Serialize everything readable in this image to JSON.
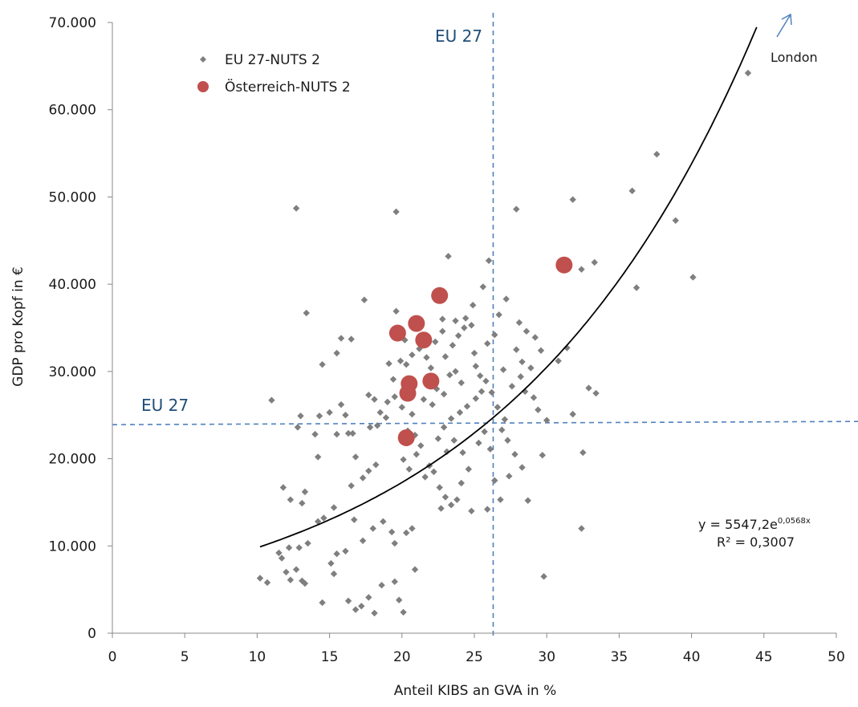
{
  "chart_data": {
    "type": "scatter",
    "title": "",
    "xlabel": "Anteil  KIBS an GVA in %",
    "ylabel": "GDP pro Kopf in €",
    "xlim": [
      0,
      50
    ],
    "ylim": [
      0,
      70000
    ],
    "x_ticks": [
      0,
      5,
      10,
      15,
      20,
      25,
      30,
      35,
      40,
      45,
      50
    ],
    "y_ticks": [
      0,
      10000,
      20000,
      30000,
      40000,
      50000,
      60000,
      70000
    ],
    "x_tick_labels": [
      "0",
      "5",
      "10",
      "15",
      "20",
      "25",
      "30",
      "35",
      "40",
      "45",
      "50"
    ],
    "y_tick_labels": [
      "0",
      "10.000",
      "20.000",
      "30.000",
      "40.000",
      "50.000",
      "60.000",
      "70.000"
    ],
    "grid": false,
    "legend_position": "top-left",
    "colors": {
      "eu": "#7f7f7f",
      "at": "#c0504d",
      "reference": "#4f81bd",
      "trend": "#000000",
      "eu_label": "#1f4e79",
      "london_arrow": "#4f81bd"
    },
    "series": [
      {
        "name": "EU 27-NUTS 2",
        "marker": "diamond",
        "points": [
          [
            10.2,
            6300
          ],
          [
            10.7,
            5800
          ],
          [
            11.5,
            9200
          ],
          [
            11.7,
            8600
          ],
          [
            12.0,
            7000
          ],
          [
            12.3,
            6100
          ],
          [
            12.7,
            7300
          ],
          [
            13.1,
            6000
          ],
          [
            13.3,
            5700
          ],
          [
            14.5,
            3500
          ],
          [
            15.3,
            6800
          ],
          [
            15.1,
            8000
          ],
          [
            15.5,
            9100
          ],
          [
            16.3,
            3700
          ],
          [
            16.8,
            2700
          ],
          [
            17.2,
            3100
          ],
          [
            17.7,
            4100
          ],
          [
            18.1,
            2300
          ],
          [
            18.6,
            5500
          ],
          [
            19.5,
            5900
          ],
          [
            19.8,
            3800
          ],
          [
            20.1,
            2400
          ],
          [
            20.9,
            7300
          ],
          [
            12.2,
            9800
          ],
          [
            12.9,
            9800
          ],
          [
            13.5,
            10300
          ],
          [
            14.2,
            12800
          ],
          [
            14.6,
            13200
          ],
          [
            15.3,
            14400
          ],
          [
            16.1,
            9400
          ],
          [
            16.7,
            13000
          ],
          [
            17.3,
            10600
          ],
          [
            18.0,
            12000
          ],
          [
            18.7,
            12800
          ],
          [
            19.3,
            11600
          ],
          [
            19.5,
            10300
          ],
          [
            20.3,
            11500
          ],
          [
            20.7,
            12000
          ],
          [
            11.8,
            16700
          ],
          [
            12.3,
            15300
          ],
          [
            13.1,
            14900
          ],
          [
            13.3,
            16200
          ],
          [
            14.2,
            20200
          ],
          [
            14.0,
            22800
          ],
          [
            14.3,
            24900
          ],
          [
            13.0,
            24900
          ],
          [
            12.8,
            23600
          ],
          [
            11.0,
            26700
          ],
          [
            15.5,
            22800
          ],
          [
            15.8,
            26200
          ],
          [
            16.1,
            25000
          ],
          [
            16.3,
            22900
          ],
          [
            16.6,
            22900
          ],
          [
            16.8,
            20200
          ],
          [
            16.5,
            16900
          ],
          [
            17.3,
            17800
          ],
          [
            17.7,
            18600
          ],
          [
            18.2,
            19300
          ],
          [
            17.8,
            23600
          ],
          [
            18.3,
            23800
          ],
          [
            18.5,
            25300
          ],
          [
            18.9,
            24700
          ],
          [
            17.7,
            27300
          ],
          [
            18.1,
            26800
          ],
          [
            19.0,
            26500
          ],
          [
            19.4,
            29100
          ],
          [
            19.9,
            31200
          ],
          [
            19.1,
            30900
          ],
          [
            19.5,
            27100
          ],
          [
            20.0,
            25900
          ],
          [
            20.7,
            25100
          ],
          [
            20.4,
            23200
          ],
          [
            20.9,
            22700
          ],
          [
            21.3,
            21500
          ],
          [
            21.0,
            20500
          ],
          [
            20.5,
            18800
          ],
          [
            20.1,
            19900
          ],
          [
            21.6,
            17900
          ],
          [
            21.9,
            19200
          ],
          [
            22.2,
            18500
          ],
          [
            22.6,
            16700
          ],
          [
            23.0,
            15600
          ],
          [
            22.7,
            14300
          ],
          [
            23.4,
            14700
          ],
          [
            23.8,
            15300
          ],
          [
            24.1,
            17200
          ],
          [
            24.6,
            18800
          ],
          [
            24.2,
            20700
          ],
          [
            23.6,
            22100
          ],
          [
            23.1,
            20800
          ],
          [
            22.5,
            22300
          ],
          [
            22.9,
            23600
          ],
          [
            23.4,
            24600
          ],
          [
            24.0,
            25300
          ],
          [
            24.5,
            26000
          ],
          [
            25.1,
            26900
          ],
          [
            25.5,
            27700
          ],
          [
            25.8,
            28900
          ],
          [
            26.2,
            27600
          ],
          [
            26.6,
            25900
          ],
          [
            27.1,
            24500
          ],
          [
            26.9,
            23300
          ],
          [
            27.3,
            22100
          ],
          [
            27.8,
            20500
          ],
          [
            28.3,
            19000
          ],
          [
            26.1,
            21100
          ],
          [
            25.3,
            21800
          ],
          [
            25.7,
            23100
          ],
          [
            26.4,
            17500
          ],
          [
            26.8,
            15300
          ],
          [
            27.4,
            18000
          ],
          [
            28.7,
            15200
          ],
          [
            25.9,
            14200
          ],
          [
            24.8,
            14000
          ],
          [
            24.1,
            28700
          ],
          [
            23.7,
            30000
          ],
          [
            23.3,
            29600
          ],
          [
            22.9,
            27400
          ],
          [
            22.4,
            28000
          ],
          [
            22.0,
            30400
          ],
          [
            21.7,
            31600
          ],
          [
            21.2,
            32600
          ],
          [
            20.7,
            31900
          ],
          [
            20.3,
            30800
          ],
          [
            21.5,
            26800
          ],
          [
            22.1,
            26200
          ],
          [
            23.0,
            31700
          ],
          [
            23.5,
            33000
          ],
          [
            23.9,
            34100
          ],
          [
            24.3,
            35000
          ],
          [
            24.8,
            35300
          ],
          [
            23.7,
            35800
          ],
          [
            24.4,
            36100
          ],
          [
            22.8,
            34600
          ],
          [
            22.3,
            33400
          ],
          [
            21.1,
            35100
          ],
          [
            20.2,
            33600
          ],
          [
            19.6,
            36900
          ],
          [
            25.1,
            30600
          ],
          [
            25.4,
            29500
          ],
          [
            25.0,
            32100
          ],
          [
            25.9,
            33200
          ],
          [
            26.4,
            34200
          ],
          [
            25.6,
            39700
          ],
          [
            26.0,
            42700
          ],
          [
            23.2,
            43200
          ],
          [
            22.8,
            36000
          ],
          [
            24.9,
            37600
          ],
          [
            27.2,
            38300
          ],
          [
            26.7,
            36500
          ],
          [
            28.1,
            35600
          ],
          [
            28.6,
            34600
          ],
          [
            29.2,
            33900
          ],
          [
            29.6,
            32400
          ],
          [
            28.9,
            30400
          ],
          [
            28.2,
            29400
          ],
          [
            27.6,
            28300
          ],
          [
            27.0,
            30200
          ],
          [
            28.5,
            27700
          ],
          [
            29.1,
            27000
          ],
          [
            29.4,
            25600
          ],
          [
            30.0,
            24400
          ],
          [
            30.8,
            31200
          ],
          [
            31.4,
            32700
          ],
          [
            27.9,
            32500
          ],
          [
            28.3,
            31100
          ],
          [
            29.7,
            20400
          ],
          [
            29.8,
            6500
          ],
          [
            32.4,
            12000
          ],
          [
            32.5,
            20700
          ],
          [
            31.8,
            25100
          ],
          [
            32.9,
            28100
          ],
          [
            33.4,
            27500
          ],
          [
            33.3,
            42500
          ],
          [
            32.4,
            41700
          ],
          [
            31.8,
            49700
          ],
          [
            35.9,
            50700
          ],
          [
            36.2,
            39600
          ],
          [
            37.6,
            54900
          ],
          [
            38.9,
            47300
          ],
          [
            40.1,
            40800
          ],
          [
            43.9,
            64200
          ],
          [
            27.9,
            48600
          ],
          [
            19.6,
            48300
          ],
          [
            12.7,
            48700
          ],
          [
            13.4,
            36700
          ],
          [
            17.4,
            38200
          ],
          [
            14.5,
            30800
          ],
          [
            15.5,
            32100
          ],
          [
            15.8,
            33800
          ],
          [
            16.5,
            33700
          ],
          [
            15.0,
            25300
          ]
        ]
      },
      {
        "name": "Österreich-NUTS 2",
        "marker": "circle",
        "points": [
          [
            20.3,
            22400
          ],
          [
            20.4,
            27500
          ],
          [
            20.5,
            28600
          ],
          [
            22.0,
            28900
          ],
          [
            19.7,
            34400
          ],
          [
            21.5,
            33600
          ],
          [
            21.0,
            35500
          ],
          [
            22.6,
            38700
          ],
          [
            31.2,
            42200
          ]
        ]
      }
    ],
    "reference_lines": [
      {
        "orientation": "vertical",
        "value": 26.3,
        "label": "EU 27"
      },
      {
        "orientation": "horizontal",
        "value": 23900,
        "label": "EU 27"
      }
    ],
    "trendline": {
      "type": "exponential",
      "a": 5547.2,
      "b": 0.0568,
      "x_range": [
        10.2,
        44.5
      ],
      "equation_prefix": "y = 5547,2e",
      "equation_exponent": "0,0568x",
      "r2_label": "R² = 0,3007"
    },
    "annotations": [
      {
        "text": "London"
      }
    ]
  }
}
